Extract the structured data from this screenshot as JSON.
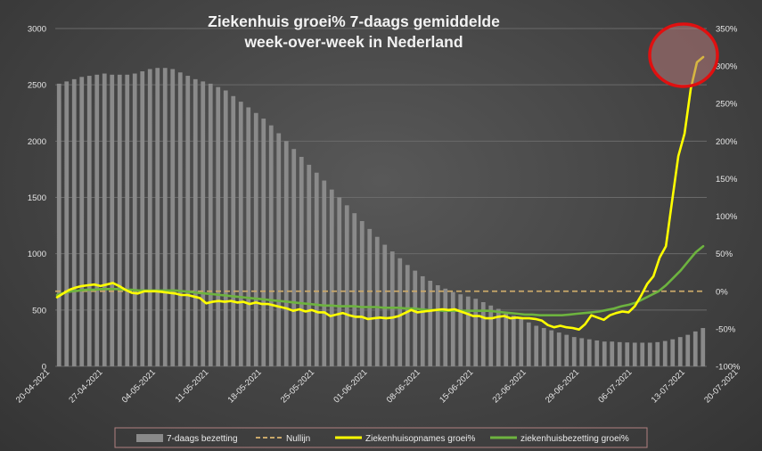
{
  "chart_data": {
    "type": "bar+line",
    "title_line1": "Ziekenhuis groei% 7-daags gemiddelde",
    "title_line2": "week-over-week in Nederland",
    "y_left": {
      "min": 0,
      "max": 3000,
      "ticks": [
        "0",
        "500",
        "1000",
        "1500",
        "2000",
        "2500",
        "3000"
      ]
    },
    "y_right": {
      "min": -100,
      "max": 350,
      "ticks": [
        "-100%",
        "-50%",
        "0%",
        "50%",
        "100%",
        "150%",
        "200%",
        "250%",
        "300%",
        "350%"
      ]
    },
    "x_tick_labels": [
      "20-04-2021",
      "27-04-2021",
      "04-05-2021",
      "11-05-2021",
      "18-05-2021",
      "25-05-2021",
      "01-06-2021",
      "08-06-2021",
      "15-06-2021",
      "22-06-2021",
      "29-06-2021",
      "06-07-2021",
      "13-07-2021",
      "20-07-2021"
    ],
    "grid": "horizontal",
    "legend_position": "bottom",
    "legend": {
      "bars": "7-daags bezetting",
      "zero_line": "Nullijn",
      "admissions": "Ziekenhuisopnames groei%",
      "occupancy": "ziekenhuisbezetting groei%"
    },
    "colors": {
      "bars": "#8a8a8a",
      "zero_line": "#c9a86a",
      "admissions": "#ffff00",
      "occupancy": "#6db33f",
      "highlight": "#e01010"
    },
    "series": [
      {
        "name": "7-daags bezetting",
        "axis": "left",
        "values": [
          2510,
          2530,
          2550,
          2570,
          2580,
          2590,
          2600,
          2590,
          2590,
          2590,
          2600,
          2620,
          2640,
          2650,
          2650,
          2640,
          2610,
          2580,
          2550,
          2530,
          2510,
          2480,
          2450,
          2400,
          2350,
          2300,
          2250,
          2200,
          2140,
          2070,
          2000,
          1930,
          1860,
          1790,
          1720,
          1650,
          1570,
          1500,
          1430,
          1360,
          1290,
          1220,
          1150,
          1080,
          1020,
          960,
          900,
          850,
          800,
          760,
          720,
          690,
          660,
          640,
          620,
          600,
          570,
          540,
          510,
          480,
          450,
          420,
          390,
          360,
          340,
          320,
          300,
          280,
          260,
          250,
          240,
          230,
          220,
          220,
          215,
          212,
          210,
          210,
          210,
          215,
          225,
          240,
          260,
          280,
          310,
          340
        ]
      },
      {
        "name": "Nullijn",
        "axis": "right",
        "values": [
          0,
          0
        ]
      },
      {
        "name": "Ziekenhuisopnames groei%",
        "axis": "right",
        "values": [
          -8,
          -3,
          2,
          5,
          7,
          8,
          9,
          7,
          9,
          11,
          7,
          2,
          -2,
          -3,
          0,
          0,
          0,
          -1,
          -2,
          -3,
          -5,
          -5,
          -7,
          -9,
          -16,
          -14,
          -13,
          -14,
          -13,
          -15,
          -14,
          -17,
          -15,
          -17,
          -17,
          -19,
          -21,
          -23,
          -26,
          -24,
          -27,
          -25,
          -28,
          -28,
          -33,
          -31,
          -29,
          -32,
          -34,
          -34,
          -37,
          -36,
          -35,
          -36,
          -35,
          -33,
          -29,
          -25,
          -28,
          -27,
          -26,
          -25,
          -24,
          -25,
          -24,
          -27,
          -30,
          -33,
          -33,
          -36,
          -36,
          -34,
          -33,
          -36,
          -35,
          -36,
          -36,
          -37,
          -39,
          -45,
          -48,
          -46,
          -48,
          -49,
          -51,
          -44,
          -32,
          -35,
          -38,
          -32,
          -29,
          -27,
          -28,
          -20,
          -6,
          10,
          20,
          45,
          60,
          120,
          180,
          210,
          270,
          305,
          312
        ]
      },
      {
        "name": "ziekenhuisbezetting groei%",
        "axis": "right",
        "values": [
          -5,
          -2,
          0,
          1,
          2,
          2,
          3,
          3,
          3,
          2,
          2,
          1,
          1,
          1,
          1,
          1,
          1,
          0,
          -1,
          -2,
          -3,
          -4,
          -5,
          -6,
          -7,
          -8,
          -9,
          -10,
          -11,
          -12,
          -13,
          -14,
          -15,
          -16,
          -17,
          -18,
          -19,
          -19,
          -20,
          -20,
          -20,
          -21,
          -21,
          -21,
          -22,
          -22,
          -22,
          -23,
          -23,
          -24,
          -25,
          -25,
          -26,
          -26,
          -26,
          -26,
          -26,
          -26,
          -26,
          -27,
          -28,
          -29,
          -30,
          -31,
          -31,
          -32,
          -32,
          -32,
          -32,
          -31,
          -30,
          -29,
          -28,
          -27,
          -25,
          -23,
          -20,
          -18,
          -15,
          -10,
          -5,
          0,
          8,
          18,
          28,
          40,
          52,
          60
        ]
      }
    ]
  }
}
